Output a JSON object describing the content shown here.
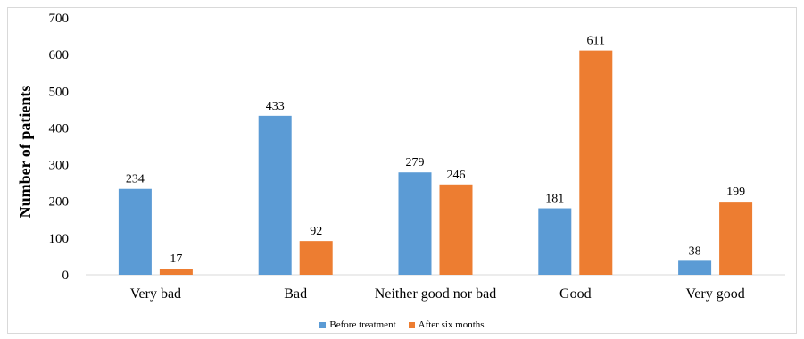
{
  "chart_data": {
    "type": "bar",
    "title": "",
    "xlabel": "",
    "ylabel": "Number of patients",
    "ylim": [
      0,
      700
    ],
    "yticks": [
      0,
      100,
      200,
      300,
      400,
      500,
      600,
      700
    ],
    "grid": false,
    "legend_position": "bottom",
    "categories": [
      "Very bad",
      "Bad",
      "Neither good nor bad",
      "Good",
      "Very good"
    ],
    "series": [
      {
        "name": "Before treatment",
        "color": "#5B9BD5",
        "values": [
          234,
          433,
          279,
          181,
          38
        ]
      },
      {
        "name": "After six months",
        "color": "#ED7D31",
        "values": [
          17,
          92,
          246,
          611,
          199
        ]
      }
    ]
  }
}
